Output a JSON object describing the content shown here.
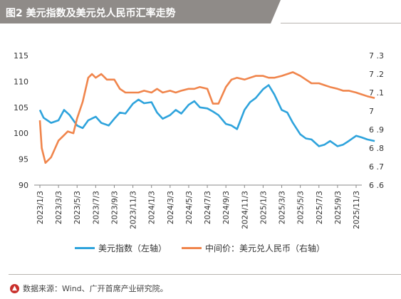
{
  "header": {
    "title": "图2 美元指数及美元兑人民币汇率走势"
  },
  "source": {
    "icon": "up-arrow-icon",
    "text": "数据来源：Wind、广开首席产业研究院。"
  },
  "colors": {
    "dxy": "#2ea3dc",
    "usdcny": "#f0854c"
  },
  "chart_data": {
    "type": "line",
    "title": "美元指数及美元兑人民币汇率走势",
    "x_tick_labels": [
      "2023/1/3",
      "2023/3/3",
      "2023/5/3",
      "2023/7/3",
      "2023/9/3",
      "2023/11/3",
      "2024/1/3",
      "2024/3/3",
      "2024/5/3",
      "2024/7/3",
      "2024/9/3",
      "2024/11/3",
      "2025/1/3",
      "2025/3/3",
      "2025/5/3",
      "2025/7/3",
      "2025/9/3",
      "2025/11/3"
    ],
    "y_left": {
      "ticks": [
        "90",
        "95",
        "100",
        "105",
        "110",
        "115"
      ],
      "ylim": [
        90,
        115
      ]
    },
    "y_right": {
      "ticks": [
        "6.6",
        "6.7",
        "6.8",
        "6.9",
        "7",
        "7.1",
        "7.2",
        "7.3"
      ],
      "ylim": [
        6.6,
        7.3
      ]
    },
    "grid": false,
    "legend_position": "bottom",
    "series": [
      {
        "name": "美元指数（左轴）",
        "axis": "left",
        "x": [
          0,
          0.2,
          0.6,
          1,
          1.3,
          1.6,
          2,
          2.3,
          2.6,
          3,
          3.3,
          3.7,
          4,
          4.3,
          4.6,
          5,
          5.3,
          5.6,
          6,
          6.3,
          6.6,
          7,
          7.3,
          7.6,
          8,
          8.3,
          8.6,
          9,
          9.3,
          9.6,
          10,
          10.3,
          10.6,
          11,
          11.3,
          11.6,
          12,
          12.3,
          12.6,
          13,
          13.3,
          13.6,
          14,
          14.3,
          14.6,
          15,
          15.3,
          15.6,
          16,
          16.3,
          16.6,
          17,
          17.3,
          17.6,
          18
        ],
        "values": [
          104.5,
          103.0,
          102.0,
          102.5,
          104.5,
          103.5,
          101.5,
          101.0,
          102.5,
          103.2,
          102.0,
          101.5,
          102.8,
          104.0,
          103.8,
          105.7,
          106.5,
          105.8,
          106.0,
          104.0,
          102.8,
          103.5,
          104.5,
          103.8,
          105.5,
          106.2,
          105.0,
          104.8,
          104.2,
          103.5,
          101.8,
          101.5,
          100.8,
          104.5,
          106.0,
          106.8,
          108.5,
          109.3,
          107.5,
          104.5,
          104.0,
          102.0,
          99.8,
          99.0,
          98.8,
          97.5,
          97.8,
          98.5,
          97.5,
          97.8,
          98.5,
          99.5,
          99.2,
          98.8,
          98.5
        ]
      },
      {
        "name": "中间价：美元兑人民币（右轴）",
        "axis": "right",
        "x": [
          0,
          0.1,
          0.3,
          0.6,
          1,
          1.3,
          1.5,
          1.8,
          2,
          2.3,
          2.6,
          2.8,
          3,
          3.3,
          3.6,
          4,
          4.3,
          4.6,
          5,
          5.3,
          5.6,
          6,
          6.3,
          6.6,
          7,
          7.3,
          7.6,
          8,
          8.3,
          8.6,
          9,
          9.3,
          9.6,
          10,
          10.3,
          10.6,
          11,
          11.3,
          11.6,
          12,
          12.3,
          12.6,
          13,
          13.3,
          13.6,
          14,
          14.3,
          14.6,
          15,
          15.3,
          15.6,
          16,
          16.3,
          16.6,
          17,
          17.3,
          17.6,
          18
        ],
        "values": [
          6.95,
          6.8,
          6.72,
          6.75,
          6.84,
          6.87,
          6.89,
          6.88,
          6.96,
          7.05,
          7.18,
          7.2,
          7.18,
          7.2,
          7.17,
          7.17,
          7.12,
          7.1,
          7.1,
          7.1,
          7.11,
          7.1,
          7.12,
          7.1,
          7.11,
          7.1,
          7.11,
          7.12,
          7.12,
          7.13,
          7.12,
          7.04,
          7.04,
          7.13,
          7.17,
          7.18,
          7.17,
          7.18,
          7.19,
          7.19,
          7.18,
          7.18,
          7.19,
          7.2,
          7.21,
          7.19,
          7.17,
          7.15,
          7.15,
          7.14,
          7.13,
          7.12,
          7.11,
          7.11,
          7.1,
          7.09,
          7.08,
          7.07
        ]
      }
    ]
  }
}
